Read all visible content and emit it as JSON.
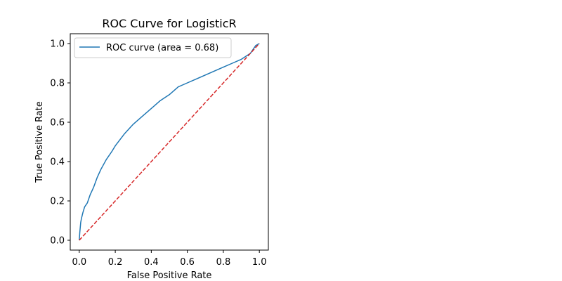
{
  "chart_data": {
    "type": "line",
    "title": "ROC Curve for LogisticR",
    "xlabel": "False Positive Rate",
    "ylabel": "True Positive Rate",
    "xlim": [
      -0.05,
      1.05
    ],
    "ylim": [
      -0.05,
      1.05
    ],
    "xticks": [
      "0.0",
      "0.2",
      "0.4",
      "0.6",
      "0.8",
      "1.0"
    ],
    "yticks": [
      "0.0",
      "0.2",
      "0.4",
      "0.6",
      "0.8",
      "1.0"
    ],
    "grid": false,
    "legend": {
      "position": "upper-left",
      "entries": [
        "ROC curve (area = 0.68)"
      ]
    },
    "series": [
      {
        "name": "ROC curve (area = 0.68)",
        "color": "#1f77b4",
        "style": "solid",
        "x": [
          0.0,
          0.003,
          0.008,
          0.012,
          0.02,
          0.03,
          0.045,
          0.06,
          0.08,
          0.1,
          0.12,
          0.15,
          0.18,
          0.2,
          0.25,
          0.3,
          0.35,
          0.4,
          0.45,
          0.5,
          0.55,
          0.6,
          0.65,
          0.7,
          0.75,
          0.8,
          0.85,
          0.9,
          0.95,
          0.98,
          1.0
        ],
        "y": [
          0.0,
          0.04,
          0.09,
          0.11,
          0.14,
          0.17,
          0.19,
          0.23,
          0.27,
          0.32,
          0.36,
          0.41,
          0.45,
          0.48,
          0.54,
          0.59,
          0.63,
          0.67,
          0.71,
          0.74,
          0.78,
          0.8,
          0.82,
          0.84,
          0.86,
          0.88,
          0.9,
          0.92,
          0.95,
          0.99,
          1.0
        ]
      },
      {
        "name": "",
        "color": "#d62728",
        "style": "dashed",
        "x": [
          0.0,
          1.0
        ],
        "y": [
          0.0,
          1.0
        ]
      }
    ]
  }
}
